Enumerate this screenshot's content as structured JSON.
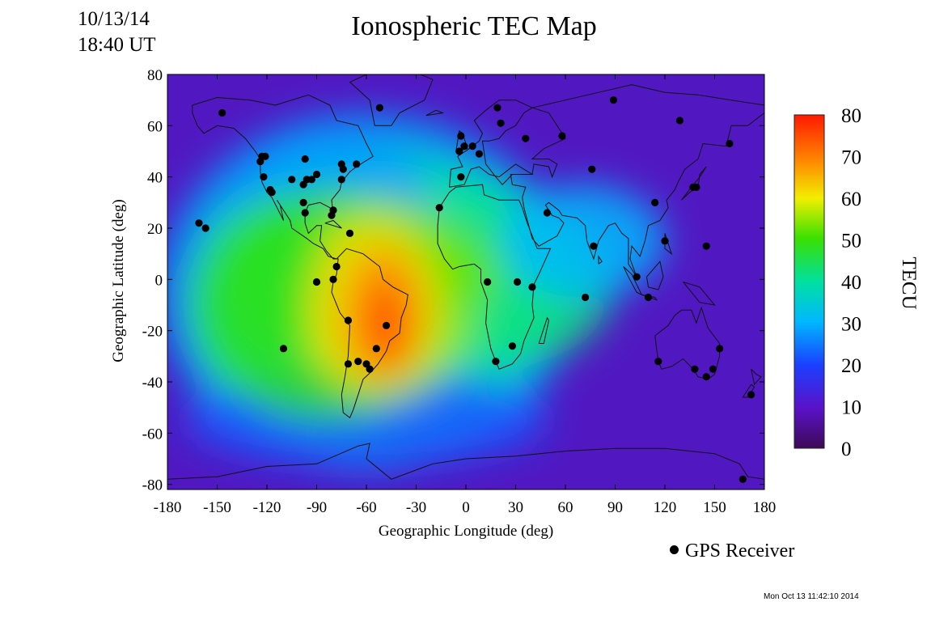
{
  "header": {
    "date": "10/13/14",
    "time": "18:40 UT",
    "title": "Ionospheric TEC Map"
  },
  "chart_data": {
    "type": "heatmap",
    "xlabel": "Geographic Longitude (deg)",
    "ylabel": "Geographic Latitude (deg)",
    "xlim": [
      -180,
      180
    ],
    "ylim": [
      -82,
      80
    ],
    "x_ticks": [
      -180,
      -150,
      -120,
      -90,
      -60,
      -30,
      0,
      30,
      60,
      90,
      120,
      150,
      180
    ],
    "y_ticks": [
      80,
      60,
      40,
      20,
      0,
      -20,
      -40,
      -60,
      -80
    ],
    "colorbar": {
      "label": "TECU",
      "range": [
        0,
        80
      ],
      "ticks": [
        80,
        70,
        60,
        50,
        40,
        30,
        20,
        10,
        0
      ]
    },
    "tec_blobs": [
      {
        "lon": -50,
        "lat": -15,
        "tec": 78
      },
      {
        "lon": -65,
        "lat": -5,
        "tec": 72
      },
      {
        "lon": -40,
        "lat": 2,
        "tec": 64
      },
      {
        "lon": -95,
        "lat": -15,
        "tec": 55
      },
      {
        "lon": -120,
        "lat": 5,
        "tec": 45
      },
      {
        "lon": -10,
        "lat": 2,
        "tec": 52
      },
      {
        "lon": 30,
        "lat": -5,
        "tec": 48
      },
      {
        "lon": 60,
        "lat": 15,
        "tec": 38
      },
      {
        "lon": -80,
        "lat": 30,
        "tec": 30
      },
      {
        "lon": -60,
        "lat": -55,
        "tec": 25
      }
    ],
    "series": [
      {
        "name": "GPS Receiver",
        "points": [
          [
            -147,
            65
          ],
          [
            -161,
            22
          ],
          [
            -157,
            20
          ],
          [
            -123,
            48
          ],
          [
            -121,
            48
          ],
          [
            -124,
            46
          ],
          [
            -122,
            40
          ],
          [
            -118,
            35
          ],
          [
            -117,
            34
          ],
          [
            -105,
            39
          ],
          [
            -97,
            47
          ],
          [
            -96,
            39
          ],
          [
            -93,
            39
          ],
          [
            -90,
            41
          ],
          [
            -98,
            37
          ],
          [
            -98,
            30
          ],
          [
            -97,
            26
          ],
          [
            -80,
            27
          ],
          [
            -81,
            25
          ],
          [
            -75,
            39
          ],
          [
            -75,
            45
          ],
          [
            -74,
            43
          ],
          [
            -66,
            45
          ],
          [
            -70,
            18
          ],
          [
            -52,
            67
          ],
          [
            -78,
            5
          ],
          [
            -80,
            0
          ],
          [
            -90,
            -1
          ],
          [
            -71,
            -16
          ],
          [
            -110,
            -27
          ],
          [
            -71,
            -33
          ],
          [
            -65,
            -32
          ],
          [
            -60,
            -33
          ],
          [
            -58,
            -35
          ],
          [
            -54,
            -27
          ],
          [
            -48,
            -18
          ],
          [
            -16,
            28
          ],
          [
            -4,
            50
          ],
          [
            -3,
            56
          ],
          [
            -1,
            52
          ],
          [
            4,
            52
          ],
          [
            8,
            49
          ],
          [
            -3,
            40
          ],
          [
            19,
            67
          ],
          [
            21,
            61
          ],
          [
            36,
            55
          ],
          [
            58,
            56
          ],
          [
            49,
            26
          ],
          [
            76,
            43
          ],
          [
            89,
            70
          ],
          [
            13,
            -1
          ],
          [
            31,
            -1
          ],
          [
            40,
            -3
          ],
          [
            28,
            -26
          ],
          [
            18,
            -32
          ],
          [
            72,
            -7
          ],
          [
            77,
            13
          ],
          [
            103,
            1
          ],
          [
            110,
            -7
          ],
          [
            114,
            30
          ],
          [
            120,
            15
          ],
          [
            137,
            36
          ],
          [
            139,
            36
          ],
          [
            145,
            13
          ],
          [
            129,
            62
          ],
          [
            159,
            53
          ],
          [
            116,
            -32
          ],
          [
            138,
            -35
          ],
          [
            145,
            -38
          ],
          [
            149,
            -35
          ],
          [
            153,
            -27
          ],
          [
            172,
            -45
          ],
          [
            167,
            -78
          ]
        ]
      }
    ]
  },
  "legend": {
    "label": "GPS Receiver"
  },
  "footer": {
    "timestamp": "Mon Oct 13 11:42:10 2014"
  }
}
